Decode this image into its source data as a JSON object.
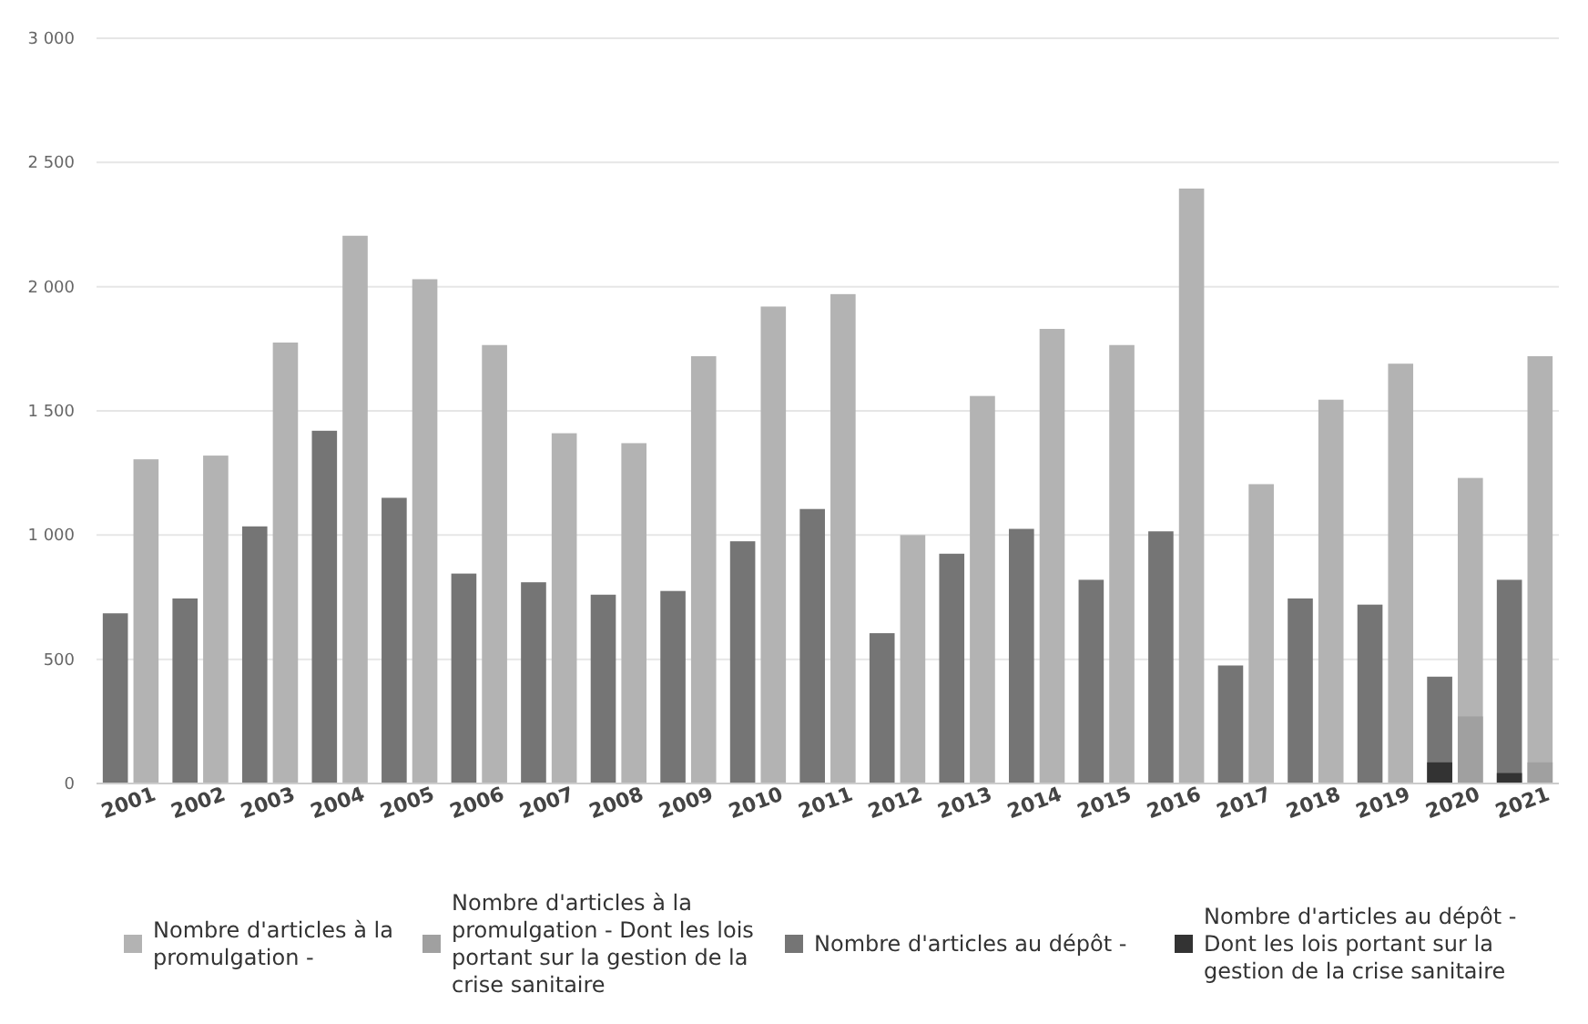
{
  "chart_data": {
    "type": "bar",
    "categories": [
      "2001",
      "2002",
      "2003",
      "2004",
      "2005",
      "2006",
      "2007",
      "2008",
      "2009",
      "2010",
      "2011",
      "2012",
      "2013",
      "2014",
      "2015",
      "2016",
      "2017",
      "2018",
      "2019",
      "2020",
      "2021"
    ],
    "series": [
      {
        "name": "Nombre d'articles à la promulgation -",
        "color": "#b3b3b3",
        "values": [
          1305,
          1320,
          1775,
          2205,
          2030,
          1765,
          1410,
          1370,
          1720,
          1920,
          1970,
          1000,
          1560,
          1830,
          1765,
          2395,
          1205,
          1545,
          1690,
          1230,
          1720
        ]
      },
      {
        "name": "Nombre d'articles à la promulgation - Dont les lois portant sur la gestion de la crise sanitaire",
        "color": "#a0a0a0",
        "values": [
          null,
          null,
          null,
          null,
          null,
          null,
          null,
          null,
          null,
          null,
          null,
          null,
          null,
          null,
          null,
          null,
          null,
          null,
          null,
          270,
          85
        ]
      },
      {
        "name": "Nombre d'articles au dépôt -",
        "color": "#757575",
        "values": [
          685,
          745,
          1035,
          1420,
          1150,
          845,
          810,
          760,
          775,
          975,
          1105,
          605,
          925,
          1025,
          820,
          1015,
          475,
          745,
          720,
          430,
          820
        ]
      },
      {
        "name": "Nombre d'articles au dépôt - Dont les lois portant sur la gestion de la crise sanitaire",
        "color": "#333333",
        "values": [
          null,
          null,
          null,
          null,
          null,
          null,
          null,
          null,
          null,
          null,
          null,
          null,
          null,
          null,
          null,
          null,
          null,
          null,
          null,
          85,
          42
        ]
      }
    ],
    "ylim": [
      0,
      3000
    ],
    "yticks": [
      {
        "value": 0,
        "label": "0"
      },
      {
        "value": 500,
        "label": "500"
      },
      {
        "value": 1000,
        "label": "1 000"
      },
      {
        "value": 1500,
        "label": "1 500"
      },
      {
        "value": 2000,
        "label": "2 000"
      },
      {
        "value": 2500,
        "label": "2 500"
      },
      {
        "value": 3000,
        "label": "3 000"
      }
    ],
    "grid": "y",
    "legend": "bottom"
  }
}
